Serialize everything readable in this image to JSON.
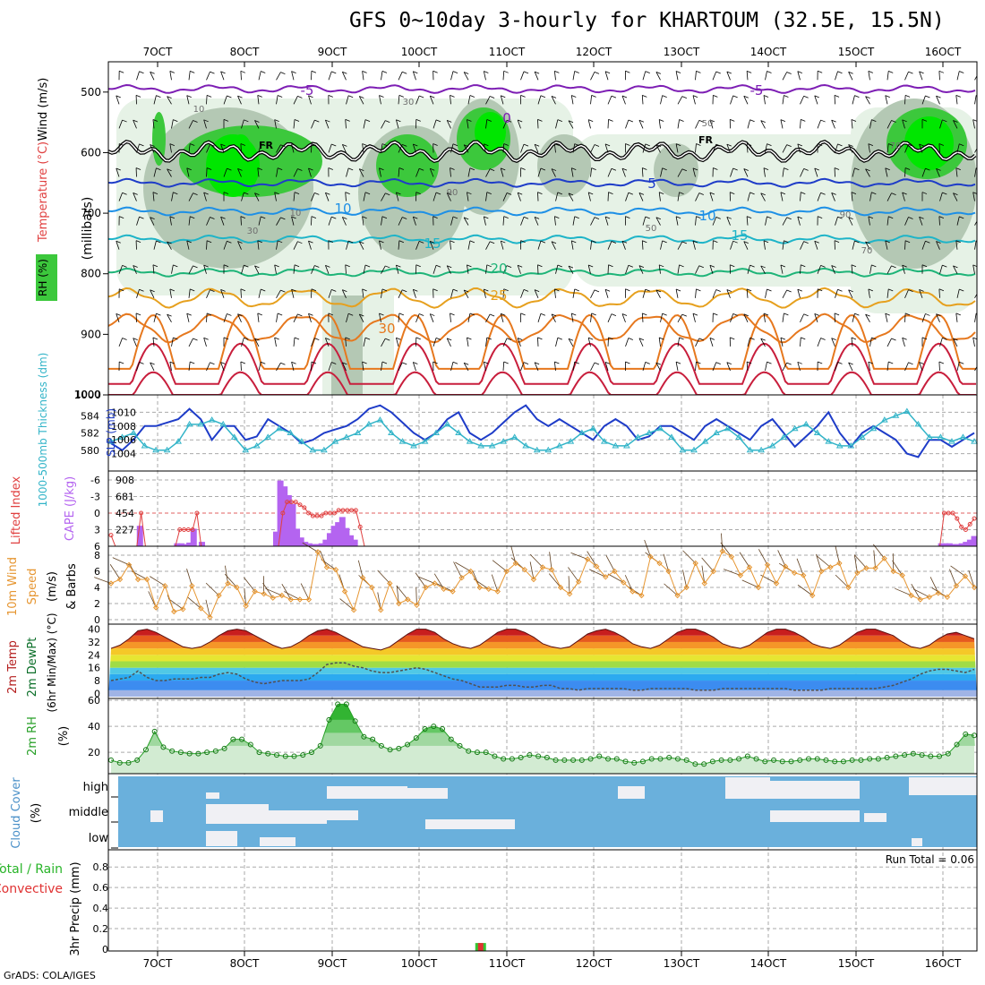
{
  "title": "GFS 0~10day 3-hourly for KHARTOUM (32.5E, 15.5N)",
  "credit": "GrADS: COLA/IGES",
  "colors": {
    "rh_light": "#e6f2e6",
    "rh_mid": "#b4c8b4",
    "rh_dark": "#8fa88f",
    "rh_green": "#3cc83c",
    "rh_bright": "#00e600",
    "slp": "#1e3cc8",
    "thickness": "#32b4c8",
    "cape": "#b464f0",
    "lifted": "#e04040",
    "wind": "#e69632",
    "barb": "#604020",
    "rh2m": "#28a028",
    "cloud": "#6ab0dc",
    "cloud_clear": "#f0f0f4",
    "temp_red": "#c81e1e"
  },
  "chart_data": [
    {
      "type": "contour",
      "panel": "upper_air",
      "title": "Temperature (°C) / Wind (m/s) / RH (%)",
      "ylabel": "(millibars)",
      "ylabel_parts": [
        "RH (%)",
        "Temperature (°C)",
        "Wind (m/s)"
      ],
      "yticks": [
        "500",
        "600",
        "700",
        "800",
        "900",
        "1000"
      ],
      "ylim": [
        1000,
        450
      ],
      "x_ticks": [
        "7OCT",
        "8OCT",
        "9OCT",
        "10OCT",
        "11OCT",
        "12OCT",
        "13OCT",
        "14OCT",
        "15OCT",
        "16OCT"
      ],
      "isotherms": [
        {
          "label": "-5",
          "pressure": 495
        },
        {
          "label": "FR",
          "pressure": 598
        },
        {
          "label": "5",
          "pressure": 650
        },
        {
          "label": "10",
          "pressure": 697
        },
        {
          "label": "15",
          "pressure": 743
        },
        {
          "label": "20",
          "pressure": 798
        },
        {
          "label": "25",
          "pressure": 840
        },
        {
          "label": "30",
          "pressure": 890
        }
      ],
      "rh_labels": [
        "10",
        "30",
        "50",
        "70",
        "90"
      ],
      "freezing_label": "FR",
      "zero_label": "0"
    },
    {
      "type": "line",
      "panel": "slp_thickness",
      "ylabel_left": "1000-500mb Thickness (dm)",
      "ylabel_right": "SLP (mb)",
      "left_ticks": [
        "584",
        "582",
        "580"
      ],
      "right_ticks": [
        "1010",
        "1008",
        "1006",
        "1004"
      ],
      "top_tick": "1000",
      "slp_range": [
        1002,
        1012
      ],
      "series": [
        {
          "name": "SLP (mb)",
          "values": [
            1005.5,
            1004.5,
            1006,
            1008,
            1008,
            1008.5,
            1009,
            1010.5,
            1009,
            1006,
            1008,
            1008,
            1006,
            1006.5,
            1009,
            1008,
            1007,
            1005.5,
            1006,
            1007,
            1007.5,
            1008,
            1009,
            1010.5,
            1011,
            1010,
            1008.5,
            1007,
            1006,
            1007,
            1009,
            1010,
            1007,
            1006,
            1007,
            1008.5,
            1010,
            1011,
            1009,
            1008,
            1009,
            1008,
            1007,
            1006,
            1008,
            1009,
            1008,
            1006,
            1006.5,
            1008,
            1008,
            1007,
            1006,
            1008,
            1009,
            1008,
            1007,
            1006,
            1008,
            1009,
            1007,
            1005,
            1006.5,
            1008,
            1010,
            1007,
            1005,
            1007,
            1008,
            1007,
            1006,
            1004,
            1003.5,
            1006,
            1006,
            1005,
            1006,
            1007
          ]
        },
        {
          "name": "1000-500mb Thickness (dm)",
          "values": [
            581,
            581.5,
            582,
            580.5,
            580,
            580,
            581,
            583,
            583,
            583.5,
            583,
            581.5,
            580,
            580.5,
            581.5,
            582.5,
            582,
            581,
            580,
            580,
            581,
            581.5,
            582,
            583,
            583.5,
            582,
            581,
            580.5,
            581,
            582,
            583,
            582,
            581,
            580.5,
            580.5,
            581,
            581.5,
            580.5,
            580,
            580,
            580.5,
            581,
            582,
            582.5,
            581,
            580.5,
            580.5,
            581.5,
            582,
            582.5,
            581.5,
            580,
            580,
            581,
            582,
            582.5,
            581.5,
            580,
            580,
            580.5,
            581.5,
            582.5,
            583,
            582,
            581,
            580.5,
            580.5,
            581.5,
            582.5,
            583.5,
            584,
            584.5,
            583,
            581.5,
            581.5,
            581,
            581.5,
            581
          ]
        }
      ]
    },
    {
      "type": "bar+line",
      "panel": "cape_li",
      "ylabel_left": "Lifted Index",
      "ylabel_right": "CAPE (J/kg)",
      "left_ticks": [
        "-6",
        "-3",
        "0",
        "3",
        "6"
      ],
      "right_ticks": [
        "908",
        "681",
        "454",
        "227"
      ],
      "cape": [
        0,
        0,
        0,
        0,
        0,
        0,
        0,
        280,
        0,
        0,
        0,
        0,
        0,
        0,
        0,
        0,
        40,
        40,
        30,
        50,
        240,
        0,
        60,
        0,
        0,
        0,
        0,
        0,
        0,
        0,
        0,
        0,
        0,
        0,
        0,
        0,
        0,
        0,
        0,
        0,
        200,
        900,
        820,
        700,
        580,
        240,
        120,
        60,
        40,
        30,
        30,
        40,
        90,
        180,
        280,
        330,
        400,
        250,
        150,
        90,
        0,
        0,
        0,
        0,
        0,
        0,
        0,
        0,
        0,
        0,
        0,
        0,
        0,
        0,
        0,
        0,
        0,
        0,
        0,
        0,
        0,
        0,
        0,
        0,
        0,
        0,
        0,
        0,
        0,
        0,
        0,
        0,
        0,
        0,
        0,
        0,
        0,
        0,
        0,
        0,
        0,
        0,
        0,
        0,
        0,
        0,
        0,
        0,
        0,
        0,
        0,
        0,
        0,
        0,
        0,
        0,
        0,
        0,
        0,
        0,
        0,
        0,
        0,
        0,
        0,
        0,
        0,
        0,
        0,
        0,
        0,
        0,
        0,
        0,
        0,
        0,
        0,
        0,
        0,
        0,
        0,
        0,
        0,
        0,
        0,
        0,
        0,
        0,
        0,
        0,
        0,
        0,
        0,
        0,
        0,
        0,
        0,
        0,
        0,
        0,
        0,
        0,
        0,
        0,
        0,
        0,
        0,
        0,
        0,
        0,
        0,
        0,
        0,
        0,
        0,
        0,
        0,
        0,
        0,
        0,
        0,
        0,
        0,
        0,
        0,
        0,
        0,
        0,
        0,
        0,
        0,
        0,
        0,
        0,
        0,
        0,
        0,
        0,
        0,
        0,
        0,
        40,
        40,
        40,
        30,
        30,
        40,
        60,
        90,
        140
      ],
      "lifted_index": [
        4,
        6,
        6,
        6,
        6,
        6,
        6,
        0,
        6,
        6,
        6,
        6,
        6,
        6,
        6,
        6,
        3,
        3,
        3,
        3,
        0,
        6,
        6,
        6,
        6,
        6,
        6,
        6,
        6,
        6,
        6,
        6,
        6,
        6,
        6,
        6,
        6,
        6,
        6,
        6,
        0,
        -2,
        -2,
        -2,
        -1.5,
        -1,
        0,
        0.5,
        0.5,
        0.5,
        0,
        0,
        0,
        -0.5,
        -0.5,
        -0.5,
        -0.5,
        -0.5,
        2.5,
        6,
        6,
        6,
        6,
        6,
        6,
        6,
        6,
        6,
        6,
        6,
        6,
        6,
        6,
        6,
        6,
        6,
        6,
        6,
        6,
        6,
        6,
        6,
        6,
        6,
        6,
        6,
        6,
        6,
        6,
        6,
        6,
        6,
        6,
        6,
        6,
        6,
        6,
        6,
        6,
        6,
        6,
        6,
        6,
        6,
        6,
        6,
        6,
        6,
        6,
        6,
        6,
        6,
        6,
        6,
        6,
        6,
        6,
        6,
        6,
        6,
        6,
        6,
        6,
        6,
        6,
        6,
        6,
        6,
        6,
        6,
        6,
        6,
        6,
        6,
        6,
        6,
        6,
        6,
        6,
        6,
        6,
        6,
        6,
        6,
        6,
        6,
        6,
        6,
        6,
        6,
        6,
        6,
        6,
        6,
        6,
        6,
        6,
        6,
        6,
        6,
        6,
        6,
        6,
        6,
        6,
        6,
        6,
        6,
        6,
        6,
        6,
        6,
        6,
        6,
        6,
        6,
        6,
        6,
        6,
        6,
        6,
        6,
        6,
        6,
        6,
        6,
        6,
        6,
        6,
        6,
        6,
        6,
        6,
        6,
        0,
        0,
        0,
        1,
        2.5,
        3,
        2,
        1
      ]
    },
    {
      "type": "line",
      "panel": "wind10m",
      "ylabel": "10m Wind Speed (m/s) & Barbs",
      "ylabel_parts": [
        "10m Wind",
        "Speed",
        "(m/s)",
        "& Barbs"
      ],
      "yticks": [
        "8",
        "6",
        "4",
        "2",
        "0"
      ],
      "ylim": [
        0,
        9
      ],
      "values": [
        4.5,
        5,
        6.8,
        5,
        5,
        1.5,
        4.2,
        1,
        1.3,
        4.2,
        1.4,
        0.3,
        3,
        4.5,
        4,
        1.7,
        3.5,
        3.2,
        2.7,
        3,
        2.5,
        2.5,
        2.5,
        8.4,
        6.5,
        6.2,
        3.5,
        1.2,
        5.2,
        4,
        1.2,
        4.5,
        2,
        2.5,
        1.8,
        4,
        4.5,
        3.8,
        3.5,
        5.2,
        6,
        4,
        3.8,
        3.5,
        6,
        7,
        6.2,
        5,
        6.5,
        6.2,
        4,
        3.2,
        4.7,
        7.5,
        6.6,
        5.3,
        6,
        4.6,
        3.5,
        3,
        7.8,
        7,
        6,
        3,
        4,
        7,
        4.5,
        6,
        8.5,
        7.8,
        5.5,
        6.5,
        4,
        6.8,
        4.5,
        6.6,
        5.8,
        5.5,
        3,
        6,
        6.5,
        7,
        4,
        5.8,
        6.4,
        6.4,
        7.6,
        6,
        5.5,
        3,
        2.5,
        2.8,
        3.3,
        2.8,
        4.2,
        5.4,
        4
      ]
    },
    {
      "type": "area",
      "panel": "temp2m",
      "ylabel_parts": [
        "2m Temp",
        "2m DewPt",
        "(6hr Min/Max) (°C)"
      ],
      "yticks": [
        "40",
        "32",
        "24",
        "16",
        "8",
        "0"
      ],
      "ylim": [
        -2,
        42
      ],
      "temperature_series": [
        28,
        30,
        34,
        39,
        40,
        38,
        35,
        32,
        29,
        28,
        29,
        32,
        36,
        39,
        40,
        39,
        36,
        33,
        30,
        28,
        29,
        32,
        36,
        39,
        40,
        38,
        35,
        32,
        29,
        28,
        27,
        29,
        33,
        37,
        40,
        40,
        38,
        34,
        31,
        29,
        28,
        30,
        34,
        38,
        40,
        40,
        38,
        35,
        31,
        29,
        28,
        29,
        33,
        37,
        39,
        40,
        38,
        35,
        31,
        29,
        28,
        30,
        34,
        38,
        40,
        40,
        38,
        35,
        31,
        29,
        28,
        30,
        34,
        38,
        40,
        40,
        38,
        35,
        31,
        29,
        28,
        30,
        34,
        38,
        40,
        40,
        38,
        36,
        32,
        29,
        28,
        30,
        34,
        37,
        38,
        36,
        34
      ],
      "dewpoint_series": [
        8,
        9,
        10,
        14,
        10,
        8,
        8,
        9,
        9,
        9,
        10,
        10,
        12,
        13,
        12,
        9,
        7,
        6,
        7,
        8,
        8,
        8,
        9,
        13,
        18,
        19,
        19,
        17,
        16,
        14,
        13,
        13,
        14,
        15,
        16,
        15,
        13,
        11,
        9,
        8,
        6,
        4,
        4,
        4,
        5,
        5,
        4,
        4,
        5,
        5,
        3,
        3,
        2,
        3,
        3,
        3,
        3,
        3,
        2,
        2,
        3,
        3,
        3,
        3,
        3,
        2,
        2,
        2,
        3,
        3,
        3,
        3,
        3,
        3,
        3,
        3,
        2,
        2,
        2,
        2,
        3,
        3,
        3,
        3,
        3,
        3,
        4,
        5,
        7,
        9,
        12,
        14,
        15,
        15,
        14,
        13,
        15
      ]
    },
    {
      "type": "area",
      "panel": "rh2m",
      "ylabel": "2m RH (%)",
      "yticks": [
        "60",
        "40",
        "20"
      ],
      "ylim": [
        5,
        60
      ],
      "values": [
        14,
        12,
        12,
        14,
        22,
        36,
        24,
        21,
        20,
        19,
        19,
        20,
        21,
        23,
        30,
        30,
        26,
        20,
        19,
        18,
        17,
        17,
        18,
        20,
        25,
        45,
        57,
        57,
        44,
        32,
        30,
        25,
        22,
        23,
        26,
        31,
        38,
        40,
        38,
        30,
        25,
        21,
        20,
        20,
        17,
        15,
        15,
        16,
        18,
        17,
        16,
        14,
        14,
        14,
        14,
        15,
        17,
        15,
        15,
        13,
        12,
        13,
        15,
        15,
        16,
        15,
        14,
        11,
        11,
        13,
        14,
        14,
        15,
        17,
        15,
        13,
        14,
        13,
        13,
        14,
        15,
        15,
        14,
        13,
        13,
        14,
        14,
        15,
        15,
        16,
        17,
        18,
        19,
        18,
        17,
        17,
        19,
        26,
        34,
        33
      ]
    },
    {
      "type": "heatmap",
      "panel": "cloud_cover",
      "ylabel": "Cloud Cover (%)",
      "yticks": [
        "high",
        "middle",
        "low"
      ],
      "legend": {
        "cloudy": "blue",
        "clear": "white"
      }
    },
    {
      "type": "bar",
      "panel": "precip",
      "ylabel": "3hr Precip (mm)",
      "legend_left": [
        "Total / Rain",
        "Convective"
      ],
      "yticks": [
        "0.8",
        "0.6",
        "0.4",
        "0.2",
        "0"
      ],
      "ylim": [
        0,
        0.95
      ],
      "run_total": "Run Total = 0.06",
      "bars": [
        {
          "x": 10.7,
          "value": 0.06
        }
      ]
    }
  ]
}
